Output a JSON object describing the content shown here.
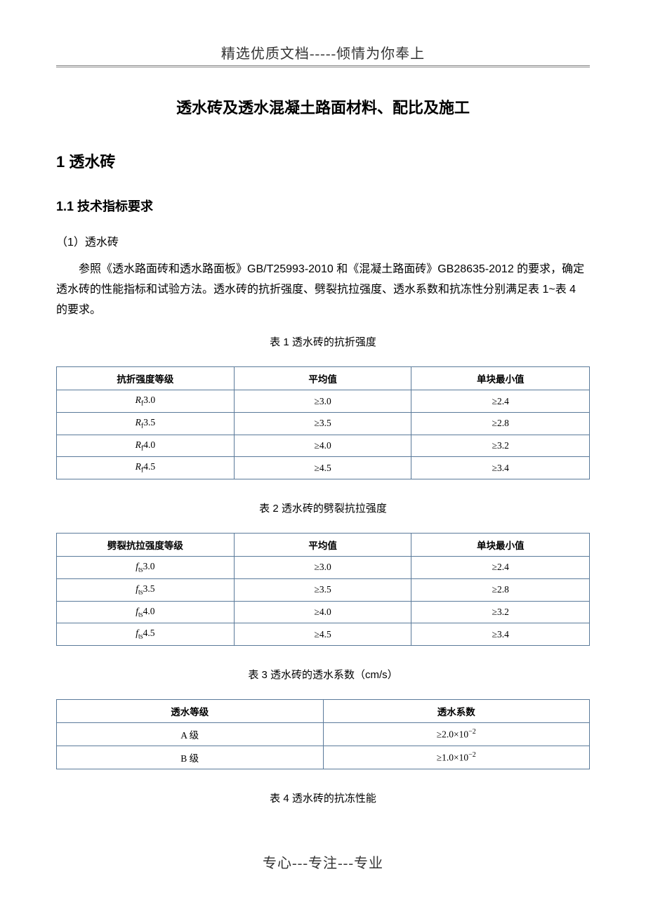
{
  "header": {
    "text": "精选优质文档-----倾情为你奉上"
  },
  "doc_title": "透水砖及透水混凝土路面材料、配比及施工",
  "section1": {
    "heading": "1  透水砖",
    "sub1": {
      "heading": "1.1  技术指标要求",
      "item1": {
        "heading": "（1）透水砖",
        "body": "参照《透水路面砖和透水路面板》GB/T25993-2010 和《混凝土路面砖》GB28635-2012 的要求，确定透水砖的性能指标和试验方法。透水砖的抗折强度、劈裂抗拉强度、透水系数和抗冻性分别满足表 1~表 4 的要求。"
      }
    }
  },
  "table1": {
    "caption": "表 1  透水砖的抗折强度",
    "columns": [
      "抗折强度等级",
      "平均值",
      "单块最小值"
    ],
    "col1_var": "R",
    "col1_sub": "f",
    "rows": [
      {
        "grade_val": "3.0",
        "avg": "≥3.0",
        "min": "≥2.4"
      },
      {
        "grade_val": "3.5",
        "avg": "≥3.5",
        "min": "≥2.8"
      },
      {
        "grade_val": "4.0",
        "avg": "≥4.0",
        "min": "≥3.2"
      },
      {
        "grade_val": "4.5",
        "avg": "≥4.5",
        "min": "≥3.4"
      }
    ]
  },
  "table2": {
    "caption": "表 2  透水砖的劈裂抗拉强度",
    "columns": [
      "劈裂抗拉强度等级",
      "平均值",
      "单块最小值"
    ],
    "col1_var": "f",
    "col1_sub": "ts",
    "rows": [
      {
        "grade_val": "3.0",
        "avg": "≥3.0",
        "min": "≥2.4"
      },
      {
        "grade_val": "3.5",
        "avg": "≥3.5",
        "min": "≥2.8"
      },
      {
        "grade_val": "4.0",
        "avg": "≥4.0",
        "min": "≥3.2"
      },
      {
        "grade_val": "4.5",
        "avg": "≥4.5",
        "min": "≥3.4"
      }
    ]
  },
  "table3": {
    "caption": "表 3  透水砖的透水系数（cm/s）",
    "columns": [
      "透水等级",
      "透水系数"
    ],
    "rows": [
      {
        "grade": "A 级",
        "coef_base": "≥2.0×10",
        "coef_exp": "−2"
      },
      {
        "grade": "B 级",
        "coef_base": "≥1.0×10",
        "coef_exp": "−2"
      }
    ]
  },
  "table4": {
    "caption": "表 4  透水砖的抗冻性能"
  },
  "footer": {
    "text": "专心---专注---专业"
  },
  "style": {
    "page_bg": "#ffffff",
    "text_color": "#000000",
    "header_color": "#333333",
    "table_border_color": "#5a7a9a",
    "body_fontsize": 16,
    "title_fontsize": 22,
    "caption_fontsize": 15,
    "table_fontsize": 13.5
  }
}
